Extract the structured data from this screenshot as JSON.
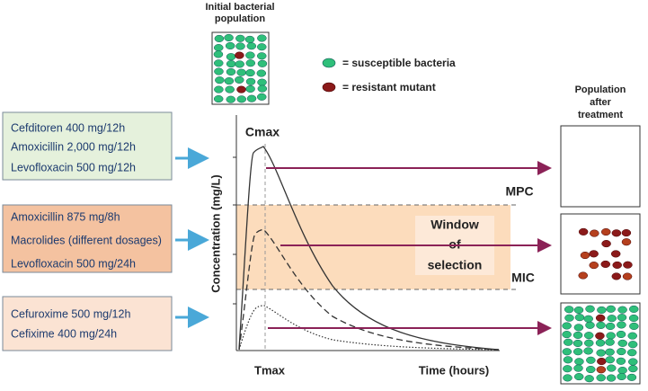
{
  "initial_population": {
    "title": [
      "Initial bacterial",
      "population"
    ]
  },
  "legend": [
    {
      "label": "= susceptible bacteria"
    },
    {
      "label": "= resistant mutant"
    }
  ],
  "boxes": [
    {
      "lines": [
        "Cefditoren 400 mg/12h",
        "Amoxicillin 2,000 mg/12h",
        "Levofloxacin 500 mg/12h"
      ]
    },
    {
      "lines": [
        "Amoxicillin 875 mg/8h",
        "Macrolides (different dosages)",
        "Levofloxacin 500 mg/24h"
      ]
    },
    {
      "lines": [
        "Cefuroxime 500 mg/12h",
        "Cefixime 400 mg/24h"
      ]
    }
  ],
  "chart": {
    "y_label": "Concentration (mg/L)",
    "x_label": "Time (hours)",
    "cmax": "Cmax",
    "tmax": "Tmax",
    "mpc": "MPC",
    "mic": "MIC",
    "window": [
      "Window",
      "of",
      "selection"
    ]
  },
  "after": {
    "title": [
      "Population",
      "after",
      "treatment"
    ]
  }
}
